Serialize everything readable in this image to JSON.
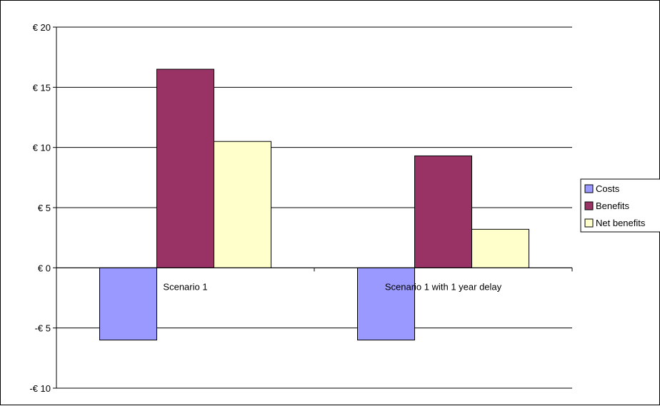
{
  "chart_data": {
    "type": "bar",
    "categories": [
      "Scenario 1",
      "Scenario 1 with 1 year delay"
    ],
    "series": [
      {
        "name": "Costs",
        "values": [
          -6,
          -6
        ],
        "color": "#9999ff"
      },
      {
        "name": "Benefits",
        "values": [
          16.5,
          9.3
        ],
        "color": "#993366"
      },
      {
        "name": "Net benefits",
        "values": [
          10.5,
          3.2
        ],
        "color": "#ffffcc"
      }
    ],
    "ylim": [
      -10,
      20
    ],
    "yticks": [
      20,
      15,
      10,
      5,
      0,
      -5,
      -10
    ],
    "ytick_labels": [
      "€ 20",
      "€ 15",
      "€ 10",
      "€ 5",
      "€ 0",
      "-€ 5",
      "-€ 10"
    ],
    "grid": true,
    "legend_position": "right"
  }
}
